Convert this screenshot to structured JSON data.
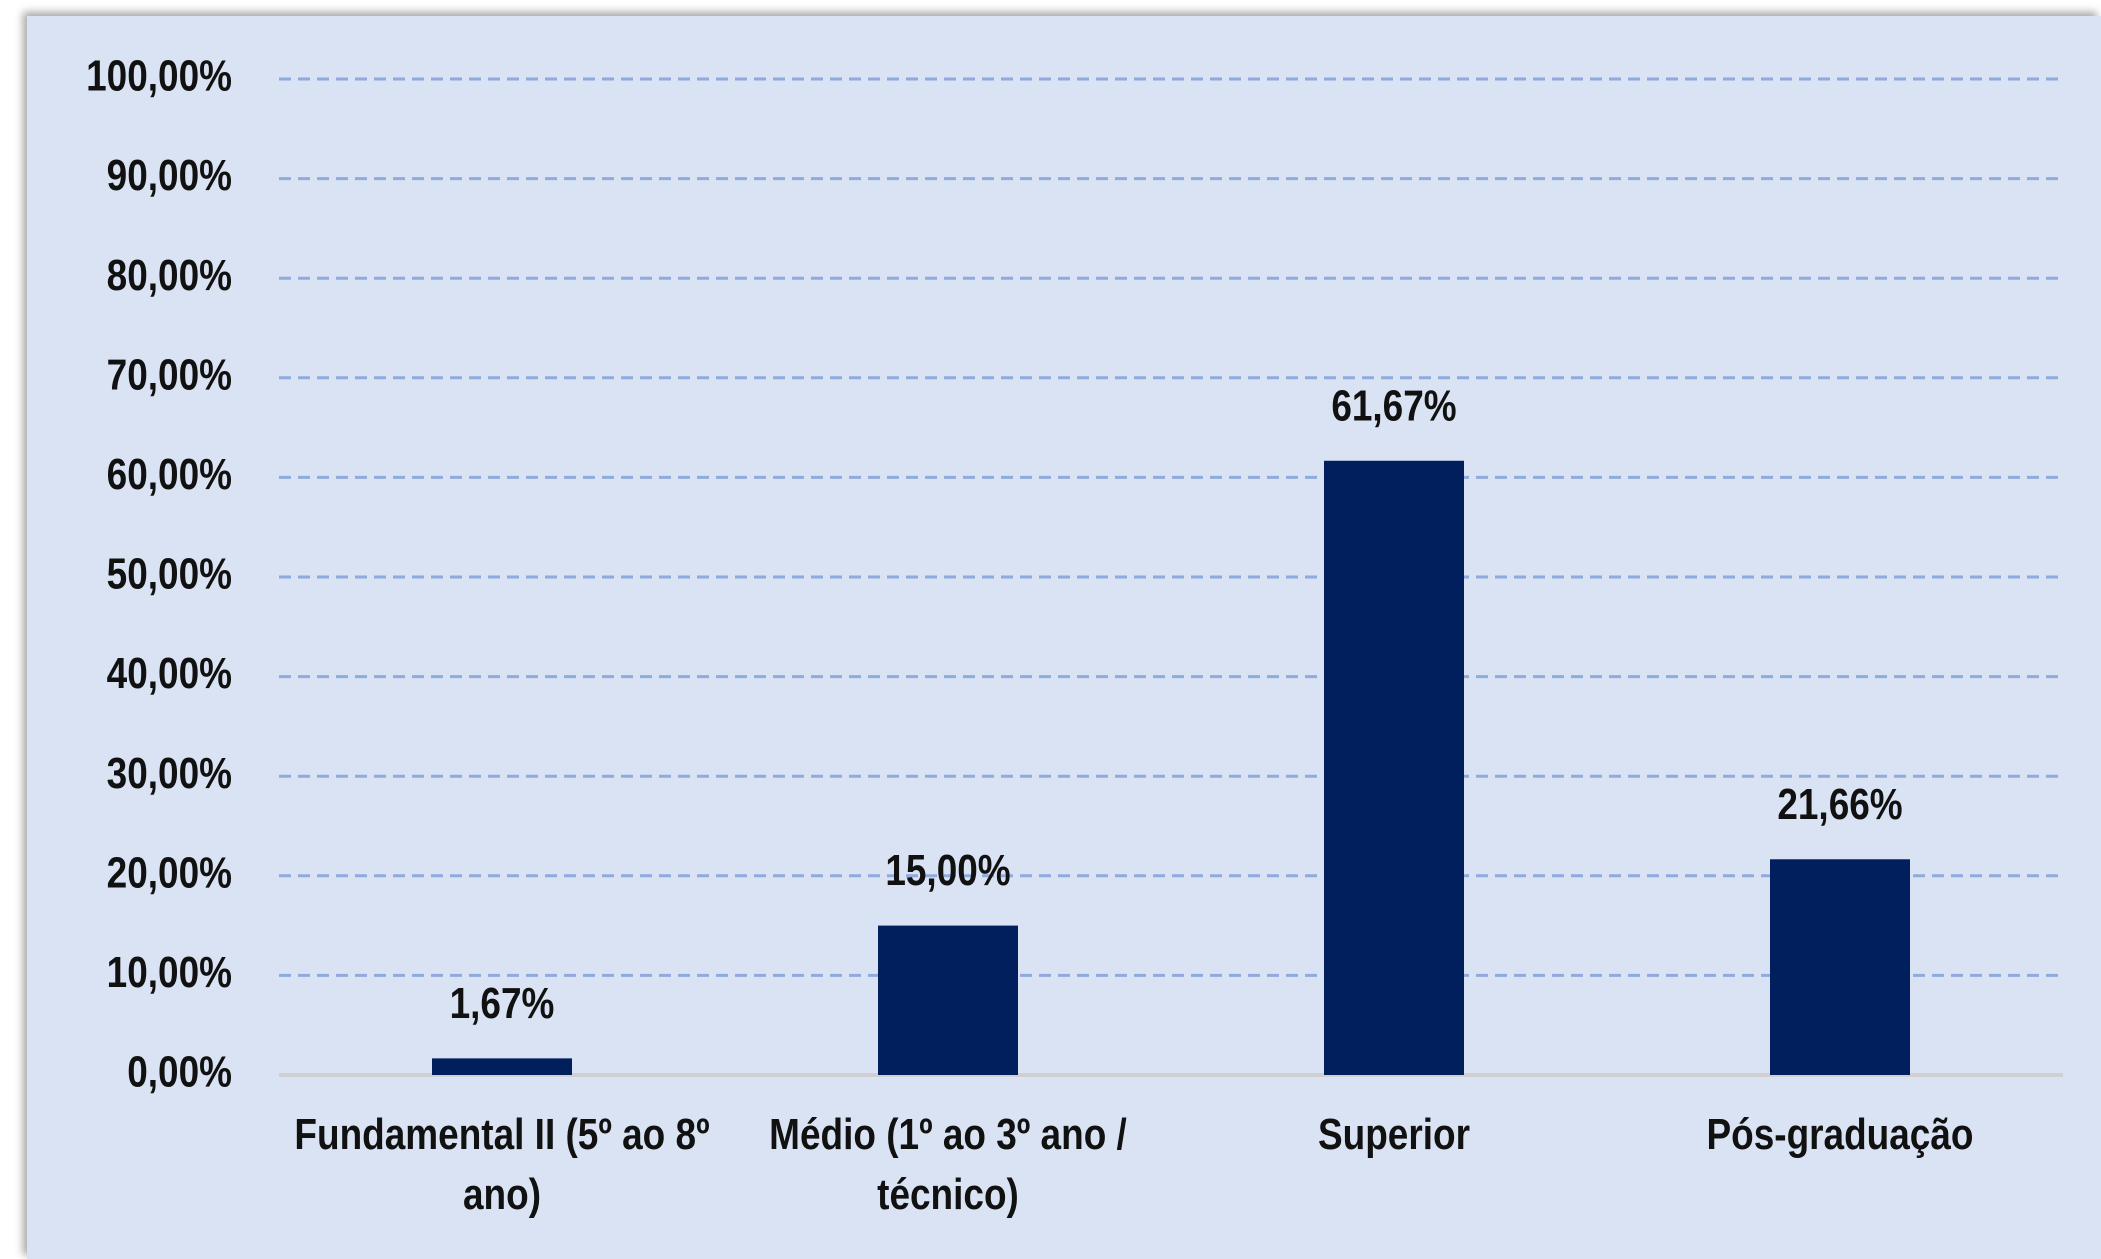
{
  "chart_data": {
    "type": "bar",
    "categories": [
      "Fundamental II (5º ao 8º ano)",
      "Médio (1º ao 3º ano / técnico)",
      "Superior",
      "Pós-graduação"
    ],
    "values": [
      1.67,
      15.0,
      61.67,
      21.66
    ],
    "value_labels": [
      "1,67%",
      "15,00%",
      "61,67%",
      "21,66%"
    ],
    "color": "#001f5c",
    "ylim": [
      0,
      100
    ],
    "yticks": [
      {
        "value": 0,
        "label": "0,00%"
      },
      {
        "value": 10,
        "label": "10,00%"
      },
      {
        "value": 20,
        "label": "20,00%"
      },
      {
        "value": 30,
        "label": "30,00%"
      },
      {
        "value": 40,
        "label": "40,00%"
      },
      {
        "value": 50,
        "label": "50,00%"
      },
      {
        "value": 60,
        "label": "60,00%"
      },
      {
        "value": 70,
        "label": "70,00%"
      },
      {
        "value": 80,
        "label": "80,00%"
      },
      {
        "value": 90,
        "label": "90,00%"
      },
      {
        "value": 100,
        "label": "100,00%"
      }
    ],
    "grid": true
  }
}
